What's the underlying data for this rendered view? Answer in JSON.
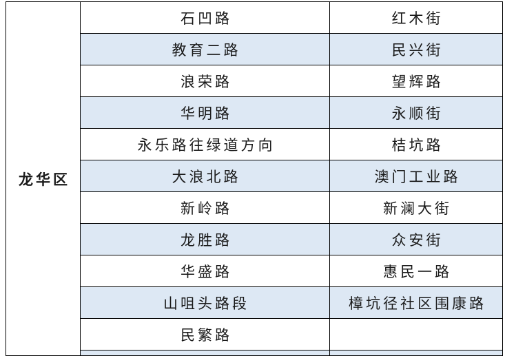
{
  "table": {
    "district": "龙华区",
    "colors": {
      "row_alt": "#dde8f4",
      "row_base": "#ffffff",
      "border": "#000000",
      "text": "#1a1a1a"
    },
    "rows": [
      {
        "road": "石凹路",
        "street": "红木街"
      },
      {
        "road": "教育二路",
        "street": "民兴街"
      },
      {
        "road": "浪荣路",
        "street": "望辉路"
      },
      {
        "road": "华明路",
        "street": "永顺街"
      },
      {
        "road": "永乐路往绿道方向",
        "street": "桔坑路"
      },
      {
        "road": "大浪北路",
        "street": "澳门工业路"
      },
      {
        "road": "新岭路",
        "street": "新澜大街"
      },
      {
        "road": "龙胜路",
        "street": "众安街"
      },
      {
        "road": "华盛路",
        "street": "惠民一路"
      },
      {
        "road": "山咀头路段",
        "street": "樟坑径社区围康路"
      },
      {
        "road": "民繁路",
        "street": ""
      }
    ]
  }
}
